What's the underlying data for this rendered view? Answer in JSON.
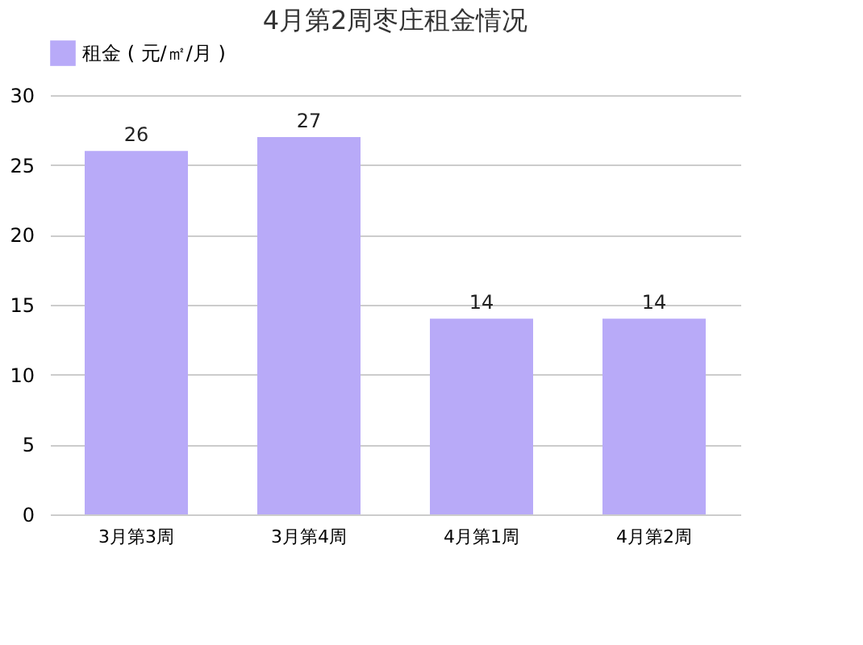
{
  "chart_data": {
    "type": "bar",
    "title": "4月第2周枣庄租金情况",
    "categories": [
      "3月第3周",
      "3月第4周",
      "4月第1周",
      "4月第2周"
    ],
    "series": [
      {
        "name": "租金 ( 元/㎡/月 )",
        "color": "#b8aaf8",
        "values": [
          26,
          27,
          14,
          14
        ]
      }
    ],
    "ylim": [
      0,
      30
    ],
    "yticks": [
      0,
      5,
      10,
      15,
      20,
      25,
      30
    ],
    "grid": "y",
    "legend": "top",
    "data_labels": true
  }
}
